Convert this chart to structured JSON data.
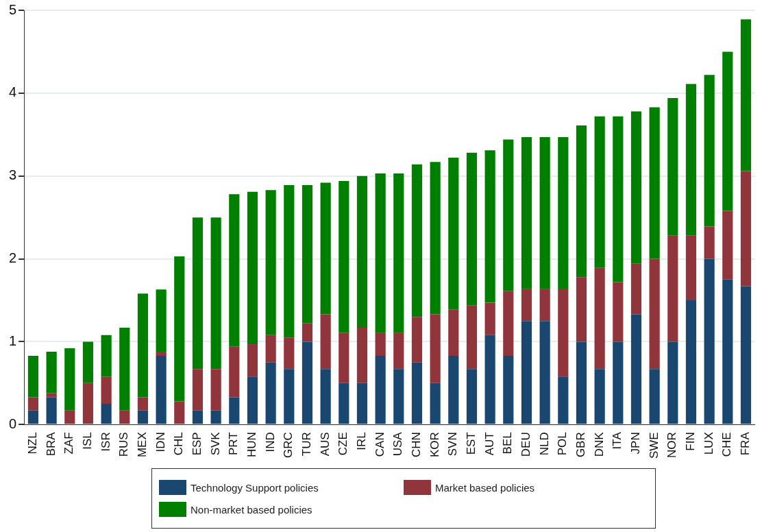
{
  "chart_data": {
    "type": "bar",
    "stacked": true,
    "categories": [
      "NZL",
      "BRA",
      "ZAF",
      "ISL",
      "ISR",
      "RUS",
      "MEX",
      "IDN",
      "CHL",
      "ESP",
      "SVK",
      "PRT",
      "HUN",
      "IND",
      "GRC",
      "TUR",
      "AUS",
      "CZE",
      "IRL",
      "CAN",
      "USA",
      "CHN",
      "KOR",
      "SVN",
      "EST",
      "AUT",
      "BEL",
      "DEU",
      "NLD",
      "POL",
      "GBR",
      "DNK",
      "ITA",
      "JPN",
      "SWE",
      "NOR",
      "FIN",
      "LUX",
      "CHE",
      "FRA"
    ],
    "series": [
      {
        "name": "Technology Support policies",
        "color": "#1a476f",
        "values": [
          0.17,
          0.33,
          0,
          0,
          0.25,
          0,
          0.17,
          0.83,
          0,
          0.17,
          0.17,
          0.33,
          0.58,
          0.75,
          0.67,
          1.0,
          0.67,
          0.5,
          0.5,
          0.83,
          0.67,
          0.75,
          0.5,
          0.83,
          0.67,
          1.08,
          0.83,
          1.25,
          1.25,
          0.58,
          1.0,
          0.67,
          1.0,
          1.33,
          0.67,
          1.0,
          1.5,
          2.0,
          1.75,
          1.67
        ]
      },
      {
        "name": "Market based policies",
        "color": "#90353b",
        "values": [
          0.16,
          0.05,
          0.17,
          0.5,
          0.33,
          0.17,
          0.16,
          0.05,
          0.28,
          0.5,
          0.5,
          0.61,
          0.39,
          0.33,
          0.38,
          0.22,
          0.66,
          0.61,
          0.67,
          0.28,
          0.44,
          0.55,
          0.83,
          0.56,
          0.77,
          0.39,
          0.78,
          0.39,
          0.39,
          1.06,
          0.78,
          1.22,
          0.72,
          0.61,
          1.33,
          1.28,
          0.78,
          0.39,
          0.83,
          1.39
        ]
      },
      {
        "name": "Non-market based policies",
        "color": "#007f00",
        "values": [
          0.5,
          0.5,
          0.75,
          0.5,
          0.5,
          1.0,
          1.25,
          0.75,
          1.75,
          1.83,
          1.83,
          1.84,
          1.84,
          1.75,
          1.84,
          1.67,
          1.59,
          1.83,
          1.83,
          1.92,
          1.92,
          1.84,
          1.84,
          1.83,
          1.84,
          1.84,
          1.83,
          1.83,
          1.83,
          1.83,
          1.83,
          1.83,
          2.0,
          1.84,
          1.83,
          1.66,
          1.83,
          1.83,
          1.92,
          1.83
        ]
      }
    ],
    "ylim": [
      0,
      5
    ],
    "yticks": [
      0,
      1,
      2,
      3,
      4,
      5
    ],
    "grid": "y",
    "legend": "bottom"
  }
}
